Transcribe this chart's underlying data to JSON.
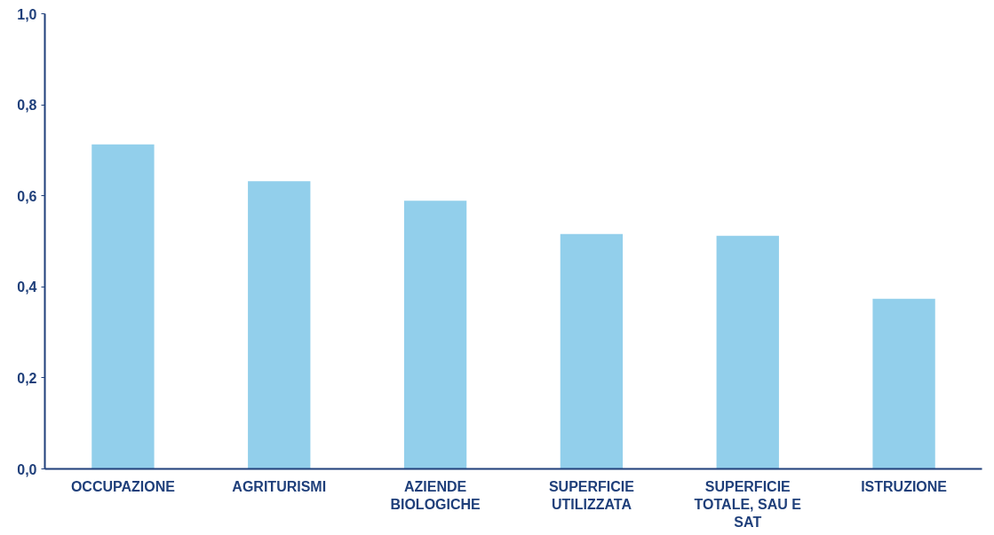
{
  "chart_data": {
    "type": "bar",
    "categories": [
      "OCCUPAZIONE",
      "AGRITURISMI",
      "AZIENDE BIOLOGICHE",
      "SUPERFICIE UTILIZZATA",
      "SUPERFICIE TOTALE, SAU E SAT",
      "ISTRUZIONE"
    ],
    "values": [
      0.713,
      0.632,
      0.589,
      0.516,
      0.512,
      0.374
    ],
    "color": "#92cfeb",
    "ylim": [
      0,
      1
    ],
    "yticks": [
      {
        "value": 0,
        "label": "0,0"
      },
      {
        "value": 0.2,
        "label": "0,2"
      },
      {
        "value": 0.4,
        "label": "0,4"
      },
      {
        "value": 0.6,
        "label": "0,6"
      },
      {
        "value": 0.8,
        "label": "0,8"
      },
      {
        "value": 1,
        "label": "1,0"
      }
    ],
    "grid": false
  }
}
